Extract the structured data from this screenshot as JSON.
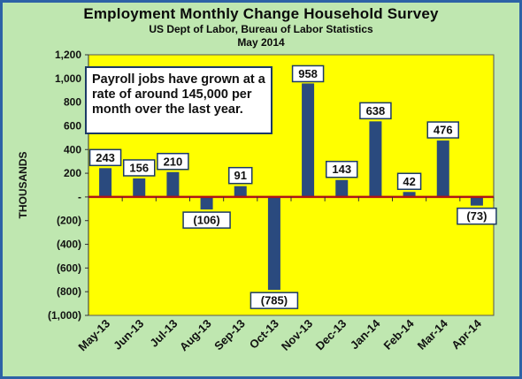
{
  "chart_data": {
    "type": "bar",
    "title": "Employment Monthly Change Household Survey",
    "subtitle": "US Dept of Labor, Bureau of Labor Statistics",
    "period": "May 2014",
    "ylabel": "THOUSANDS",
    "xlabel": "",
    "ylim": [
      -1000,
      1200
    ],
    "yticks": [
      1200,
      1000,
      800,
      600,
      400,
      200,
      0,
      -200,
      -400,
      -600,
      -800,
      -1000
    ],
    "ytick_labels": [
      "1,200",
      "1,000",
      "800",
      "600",
      "400",
      "200",
      "-",
      "(200)",
      "(400)",
      "(600)",
      "(800)",
      "(1,000)"
    ],
    "categories": [
      "May-13",
      "Jun-13",
      "Jul-13",
      "Aug-13",
      "Sep-13",
      "Oct-13",
      "Nov-13",
      "Dec-13",
      "Jan-14",
      "Feb-14",
      "Mar-14",
      "Apr-14"
    ],
    "values": [
      243,
      156,
      210,
      -106,
      91,
      -785,
      958,
      143,
      638,
      42,
      476,
      -73
    ],
    "data_labels": [
      "243",
      "156",
      "210",
      "(106)",
      "91",
      "(785)",
      "958",
      "143",
      "638",
      "42",
      "476",
      "(73)"
    ],
    "annotation": "Payroll jobs have grown at a rate of around 145,000 per month over the last year.",
    "grid": false,
    "legend": "none",
    "colors": {
      "bar": "#2a4a7e",
      "plot_background": "#ffff00",
      "outer_background": "#bfe7b0",
      "zero_line": "#b01515",
      "frame": "#2d62a6"
    }
  }
}
